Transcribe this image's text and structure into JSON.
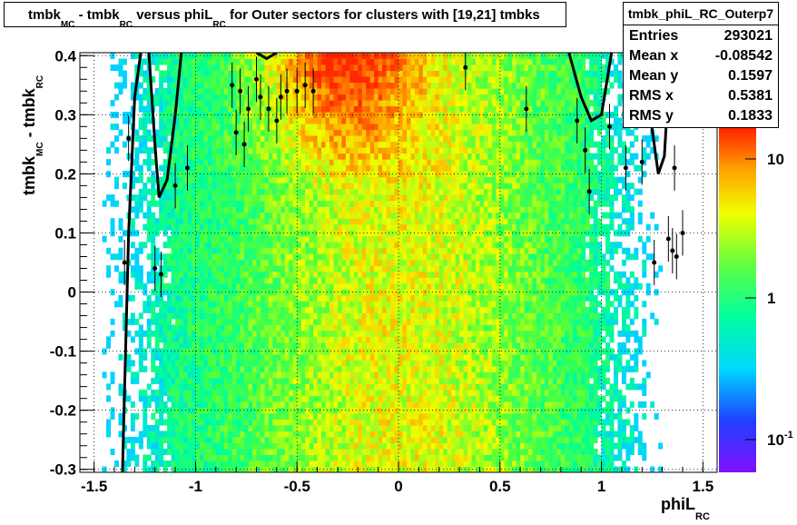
{
  "chart_data": {
    "type": "heatmap",
    "title_parts": [
      "tmbk",
      "MC",
      " - tmbk",
      "RC",
      " versus phiL",
      "RC",
      " for Outer sectors for clusters with [19,21] tmbks"
    ],
    "xlabel_parts": [
      "phiL",
      "RC"
    ],
    "ylabel_parts": [
      "tmbk",
      "MC",
      " - tmbk",
      "RC"
    ],
    "xlim": [
      -1.57,
      1.57
    ],
    "ylim": [
      -0.305,
      0.405
    ],
    "xticks": [
      "-1.5",
      "-1",
      "-0.5",
      "0",
      "0.5",
      "1",
      "1.5"
    ],
    "xtick_values": [
      -1.5,
      -1,
      -0.5,
      0,
      0.5,
      1,
      1.5
    ],
    "yticks": [
      "-0.3",
      "-0.2",
      "-0.1",
      "0",
      "0.1",
      "0.2",
      "0.3",
      "0.4"
    ],
    "ytick_values": [
      -0.3,
      -0.2,
      -0.1,
      0,
      0.1,
      0.2,
      0.3,
      0.4
    ],
    "grid": true,
    "colorbar": {
      "scale": "log",
      "labels": [
        "10",
        "1",
        "10-1"
      ],
      "label_values": [
        10,
        1,
        0.1
      ]
    },
    "profile_points": [
      {
        "x": -1.35,
        "y": 0.05
      },
      {
        "x": -1.33,
        "y": 0.26
      },
      {
        "x": -1.2,
        "y": 0.04
      },
      {
        "x": -1.17,
        "y": 0.03
      },
      {
        "x": -1.1,
        "y": 0.18
      },
      {
        "x": -1.04,
        "y": 0.21
      },
      {
        "x": -0.82,
        "y": 0.35
      },
      {
        "x": -0.78,
        "y": 0.34
      },
      {
        "x": -0.8,
        "y": 0.27
      },
      {
        "x": -0.76,
        "y": 0.25
      },
      {
        "x": -0.74,
        "y": 0.31
      },
      {
        "x": -0.7,
        "y": 0.36
      },
      {
        "x": -0.68,
        "y": 0.33
      },
      {
        "x": -0.64,
        "y": 0.31
      },
      {
        "x": -0.6,
        "y": 0.29
      },
      {
        "x": -0.58,
        "y": 0.33
      },
      {
        "x": -0.55,
        "y": 0.34
      },
      {
        "x": -0.5,
        "y": 0.34
      },
      {
        "x": -0.46,
        "y": 0.35
      },
      {
        "x": -0.42,
        "y": 0.34
      },
      {
        "x": 0.33,
        "y": 0.38
      },
      {
        "x": 0.63,
        "y": 0.31
      },
      {
        "x": 0.88,
        "y": 0.29
      },
      {
        "x": 1.04,
        "y": 0.28
      },
      {
        "x": 0.92,
        "y": 0.24
      },
      {
        "x": 0.94,
        "y": 0.17
      },
      {
        "x": 1.12,
        "y": 0.21
      },
      {
        "x": 1.2,
        "y": 0.22
      },
      {
        "x": 1.26,
        "y": 0.05
      },
      {
        "x": 1.33,
        "y": 0.09
      },
      {
        "x": 1.35,
        "y": 0.07
      },
      {
        "x": 1.37,
        "y": 0.06
      },
      {
        "x": 1.4,
        "y": 0.1
      },
      {
        "x": 1.36,
        "y": 0.21
      }
    ],
    "fit_curves": [
      [
        {
          "x": -1.36,
          "y": -0.305
        },
        {
          "x": -1.33,
          "y": 0.1
        },
        {
          "x": -1.3,
          "y": 0.33
        },
        {
          "x": -1.27,
          "y": 0.405
        }
      ],
      [
        {
          "x": -1.23,
          "y": 0.405
        },
        {
          "x": -1.2,
          "y": 0.25
        },
        {
          "x": -1.18,
          "y": 0.16
        },
        {
          "x": -1.14,
          "y": 0.19
        },
        {
          "x": -1.1,
          "y": 0.3
        },
        {
          "x": -1.07,
          "y": 0.405
        }
      ],
      [
        {
          "x": -0.7,
          "y": 0.405
        },
        {
          "x": -0.65,
          "y": 0.395
        },
        {
          "x": -0.6,
          "y": 0.405
        }
      ],
      [
        {
          "x": 0.84,
          "y": 0.405
        },
        {
          "x": 0.9,
          "y": 0.33
        },
        {
          "x": 0.95,
          "y": 0.29
        },
        {
          "x": 1.0,
          "y": 0.3
        },
        {
          "x": 1.05,
          "y": 0.405
        }
      ],
      [
        {
          "x": 1.19,
          "y": 0.405
        },
        {
          "x": 1.24,
          "y": 0.3
        },
        {
          "x": 1.28,
          "y": 0.2
        },
        {
          "x": 1.31,
          "y": 0.23
        },
        {
          "x": 1.34,
          "y": 0.405
        }
      ]
    ]
  },
  "stats": {
    "name": "tmbk_phiL_RC_Outerp7",
    "rows": [
      {
        "label": "Entries",
        "value": "293021"
      },
      {
        "label": "Mean x",
        "value": "-0.08542"
      },
      {
        "label": "Mean y",
        "value": "0.1597"
      },
      {
        "label": "RMS x",
        "value": "0.5381"
      },
      {
        "label": "RMS y",
        "value": "0.1833"
      }
    ]
  }
}
